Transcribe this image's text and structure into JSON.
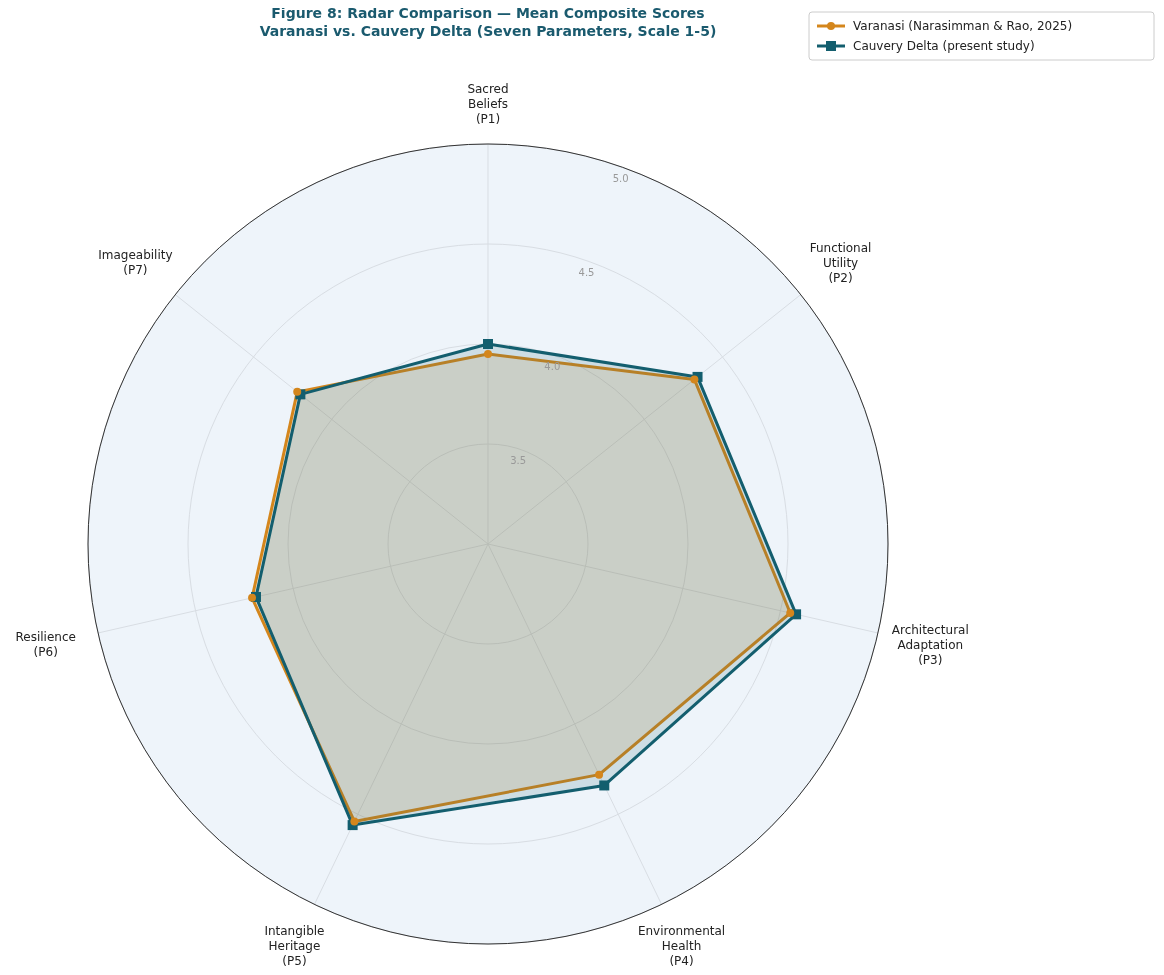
{
  "chart_data": {
    "type": "radar",
    "title": "Figure 8: Radar Comparison — Mean Composite Scores",
    "subtitle": "Varanasi vs. Cauvery Delta (Seven Parameters, Scale 1-5)",
    "categories": [
      "Sacred\nBeliefs\n(P1)",
      "Functional\nUtility\n(P2)",
      "Architectural\nAdaptation\n(P3)",
      "Environmental\nHealth\n(P4)",
      "Intangible\nHeritage\n(P5)",
      "Resilience\n(P6)",
      "Imageability\n(P7)"
    ],
    "series": [
      {
        "name": "Varanasi (Narasimman & Rao, 2025)",
        "color": "#d4861c",
        "marker": "circle",
        "values": [
          3.95,
          4.32,
          4.55,
          4.28,
          4.54,
          4.21,
          4.22
        ]
      },
      {
        "name": "Cauvery Delta (present study)",
        "color": "#135e6e",
        "marker": "square",
        "values": [
          4.0,
          4.34,
          4.58,
          4.34,
          4.56,
          4.19,
          4.2
        ]
      }
    ],
    "ylim": [
      3.0,
      5.0
    ],
    "yticks": [
      3.5,
      {
        "value": 4.0,
        "label": "4.0"
      },
      4.5,
      {
        "value": 5.0,
        "label": "5.0"
      }
    ],
    "grid": true,
    "legend": "top right"
  }
}
